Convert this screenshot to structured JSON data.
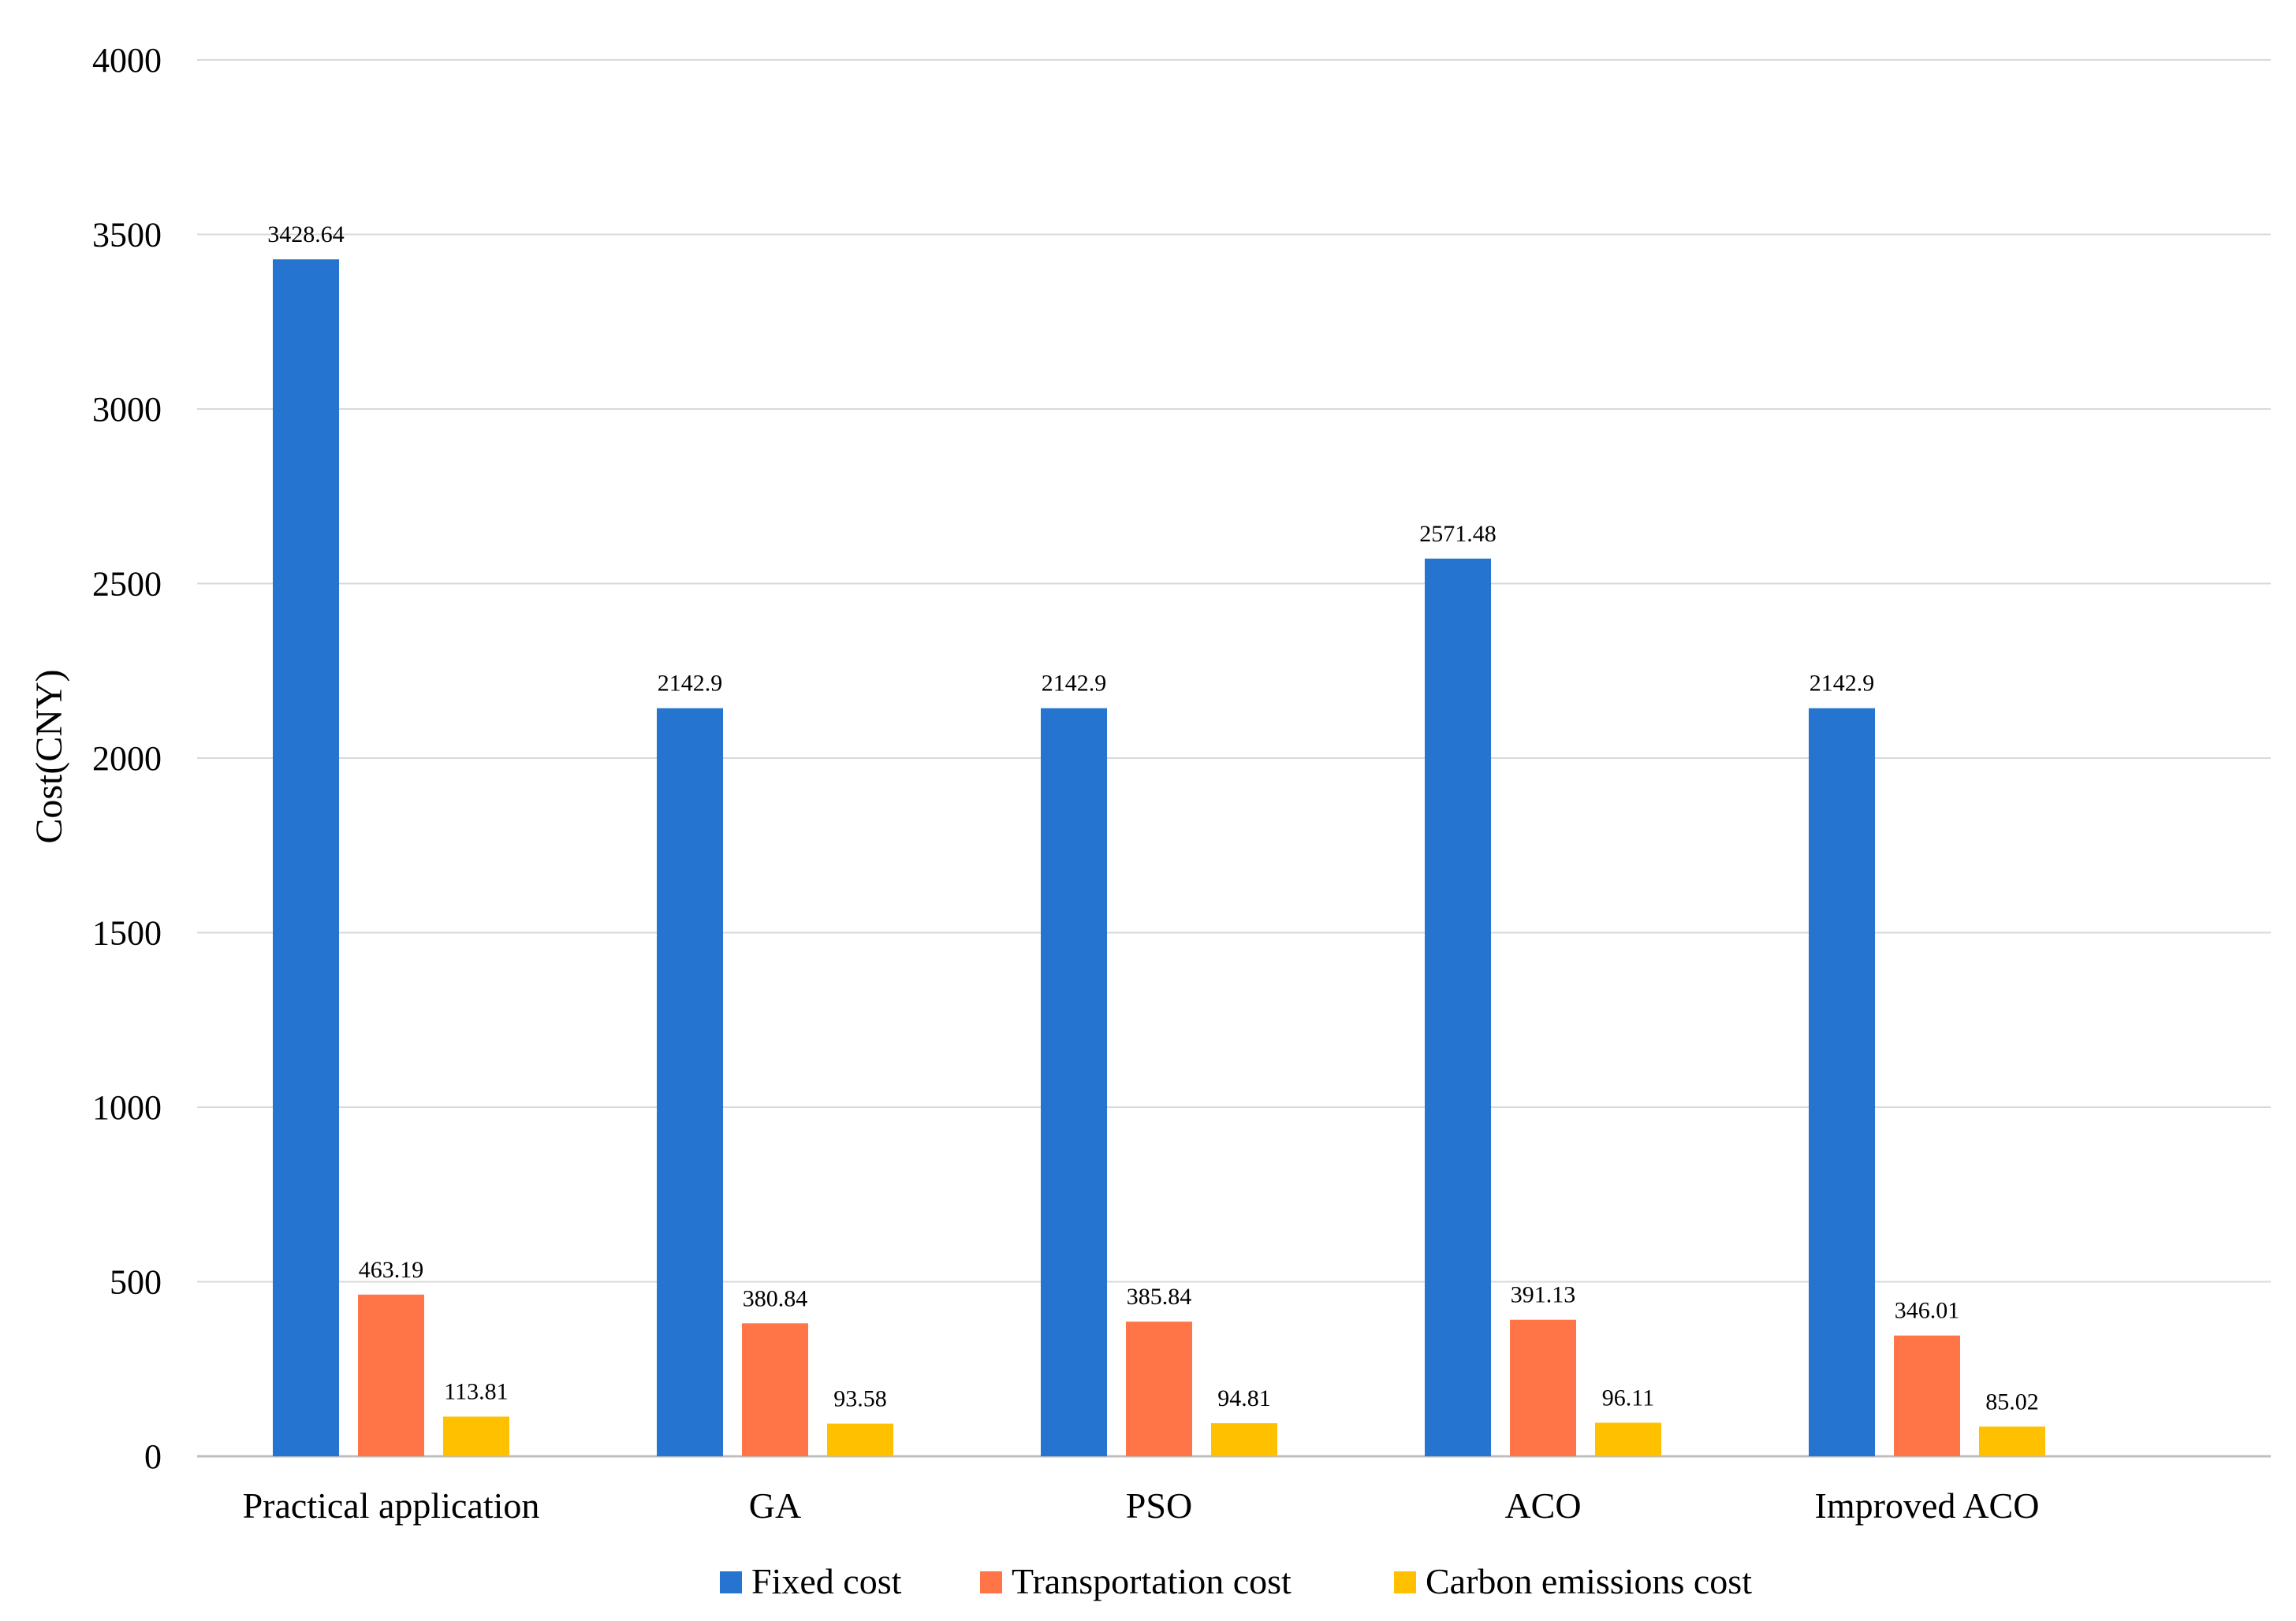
{
  "chart_data": {
    "type": "bar",
    "title": "",
    "xlabel": "",
    "ylabel": "Cost(CNY)",
    "ylim": [
      0,
      4000
    ],
    "yticks": [
      0,
      500,
      1000,
      1500,
      2000,
      2500,
      3000,
      3500,
      4000
    ],
    "grid": true,
    "legend_position": "bottom",
    "categories": [
      "Practical application",
      "GA",
      "PSO",
      "ACO",
      "Improved ACO"
    ],
    "series": [
      {
        "name": "Fixed cost",
        "color": "#2575D0",
        "values": [
          3428.64,
          2142.9,
          2142.9,
          2571.48,
          2142.9
        ],
        "labels": [
          "3428.64",
          "2142.9",
          "2142.9",
          "2571.48",
          "2142.9"
        ]
      },
      {
        "name": "Transportation cost",
        "color": "#FF7548",
        "values": [
          463.19,
          380.84,
          385.84,
          391.13,
          346.01
        ],
        "labels": [
          "463.19",
          "380.84",
          "385.84",
          "391.13",
          "346.01"
        ]
      },
      {
        "name": "Carbon emissions cost",
        "color": "#FFC000",
        "values": [
          113.81,
          93.58,
          94.81,
          96.11,
          85.02
        ],
        "labels": [
          "113.81",
          "93.58",
          "94.81",
          "96.11",
          "85.02"
        ]
      }
    ]
  }
}
